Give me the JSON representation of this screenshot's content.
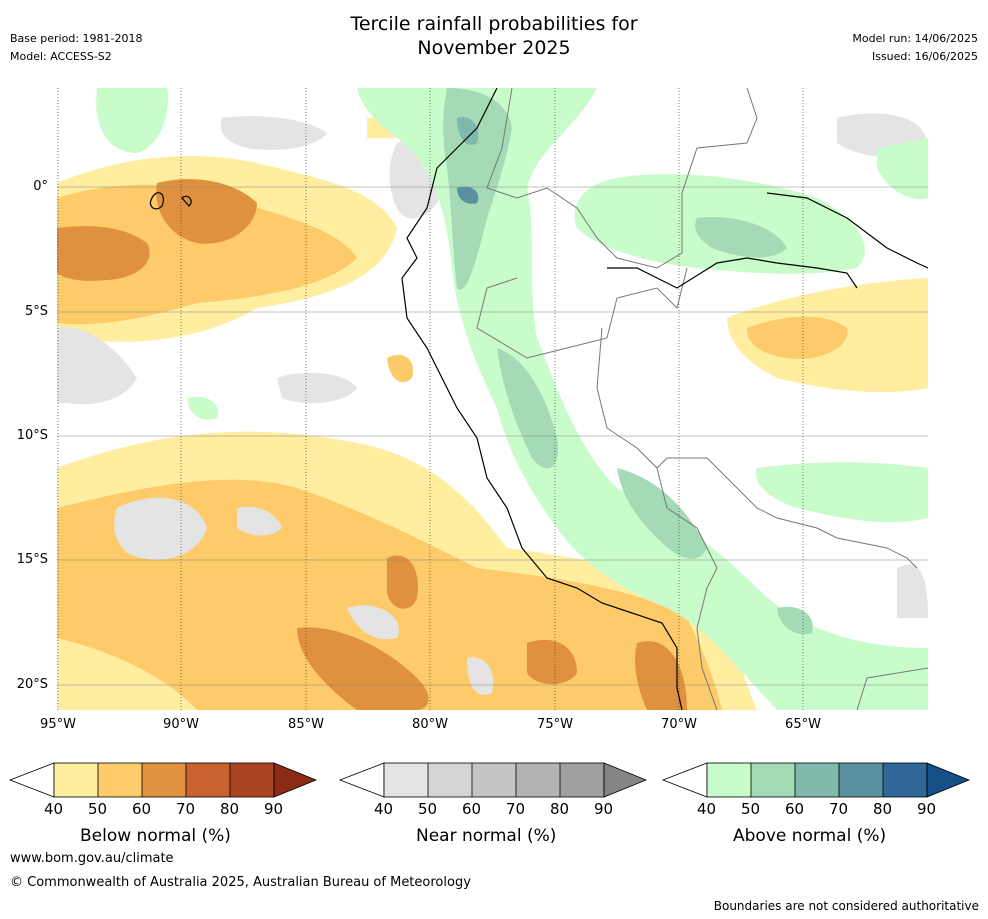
{
  "title_line1": "Tercile rainfall probabilities for",
  "title_line2": "November 2025",
  "base_period": "Base period: 1981-2018",
  "model": "Model: ACCESS-S2",
  "model_run": "Model run: 14/06/2025",
  "issued": "Issued: 16/06/2025",
  "lat_labels": [
    "0°",
    "5°S",
    "10°S",
    "15°S",
    "20°S"
  ],
  "lon_labels": [
    "95°W",
    "90°W",
    "85°W",
    "80°W",
    "75°W",
    "70°W",
    "65°W"
  ],
  "colorbars": [
    {
      "title": "Below normal (%)",
      "ticks": [
        "40",
        "50",
        "60",
        "70",
        "80",
        "90"
      ],
      "colors": [
        "#ffeda0",
        "#fecb6a",
        "#e0913f",
        "#c9622f",
        "#aa4524",
        "#8c2a14"
      ]
    },
    {
      "title": "Near normal (%)",
      "ticks": [
        "40",
        "50",
        "60",
        "70",
        "80",
        "90"
      ],
      "colors": [
        "#e4e4e4",
        "#d4d4d4",
        "#c5c5c5",
        "#b3b3b3",
        "#a0a0a0",
        "#858585"
      ]
    },
    {
      "title": "Above normal (%)",
      "ticks": [
        "40",
        "50",
        "60",
        "70",
        "80",
        "90"
      ],
      "colors": [
        "#c9fccb",
        "#a5dab6",
        "#7fb9ab",
        "#5a91a0",
        "#2f6799",
        "#144f85"
      ]
    }
  ],
  "footer_url": "www.bom.gov.au/climate",
  "footer_copyright": "© Commonwealth of Australia 2025, Australian Bureau of Meteorology",
  "footer_note": "Boundaries are not considered authoritative"
}
